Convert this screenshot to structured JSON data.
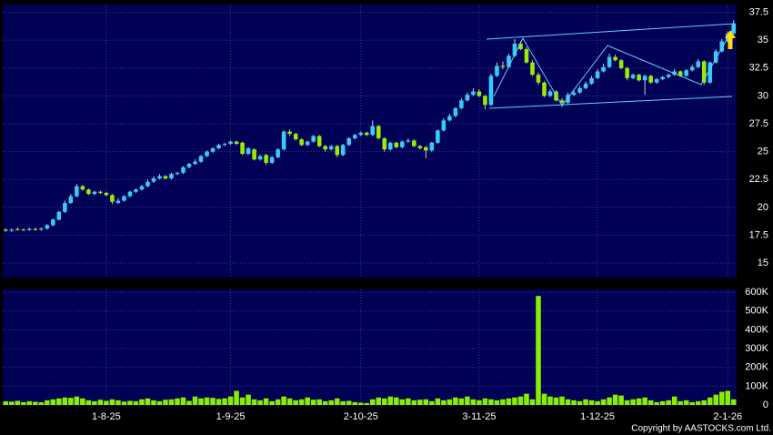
{
  "chart_data": {
    "type": "candlestick",
    "categories": [
      null,
      null,
      null,
      null,
      null,
      null,
      null,
      null,
      null,
      null,
      null,
      null,
      null,
      null,
      null,
      null,
      null,
      "1-8-25",
      null,
      null,
      null,
      null,
      null,
      null,
      null,
      null,
      null,
      null,
      null,
      null,
      null,
      null,
      null,
      null,
      null,
      null,
      null,
      null,
      "1-9-25",
      null,
      null,
      null,
      null,
      null,
      null,
      null,
      null,
      null,
      null,
      null,
      null,
      null,
      null,
      null,
      null,
      null,
      null,
      null,
      null,
      null,
      "2-10-25",
      null,
      null,
      null,
      null,
      null,
      null,
      null,
      null,
      null,
      null,
      null,
      null,
      null,
      null,
      null,
      null,
      null,
      null,
      null,
      "3-11-25",
      null,
      null,
      null,
      null,
      null,
      null,
      null,
      null,
      null,
      null,
      null,
      null,
      null,
      null,
      null,
      null,
      null,
      null,
      null,
      "1-12-25",
      null,
      null,
      null,
      null,
      null,
      null,
      null,
      null,
      null,
      null,
      null,
      null,
      null,
      null,
      null,
      null,
      null,
      null,
      null,
      null,
      null,
      "2-1-26",
      null
    ],
    "open": [
      18.0,
      17.9,
      18.05,
      18.0,
      17.95,
      18.05,
      18.0,
      18.1,
      18.4,
      18.9,
      19.6,
      20.4,
      21.0,
      21.9,
      21.6,
      21.2,
      21.4,
      21.3,
      21.1,
      20.4,
      20.6,
      21.0,
      21.4,
      21.6,
      21.9,
      22.3,
      22.6,
      22.8,
      22.6,
      23.0,
      23.1,
      23.6,
      23.9,
      24.1,
      24.6,
      25.0,
      25.3,
      25.6,
      25.7,
      25.9,
      25.8,
      24.8,
      25.2,
      24.3,
      24.7,
      24.0,
      24.5,
      25.2,
      26.8,
      26.6,
      26.1,
      25.6,
      25.9,
      26.4,
      25.5,
      25.2,
      25.5,
      24.7,
      25.6,
      26.2,
      26.5,
      26.7,
      26.5,
      27.3,
      26.2,
      25.2,
      25.8,
      25.4,
      25.9,
      26.0,
      25.5,
      25.4,
      25.1,
      25.8,
      26.9,
      27.8,
      28.2,
      28.9,
      29.6,
      30.1,
      30.4,
      30.0,
      29.2,
      31.8,
      32.7,
      32.6,
      33.6,
      34.7,
      34.2,
      33.0,
      31.9,
      31.2,
      30.0,
      30.4,
      29.6,
      29.4,
      30.1,
      30.3,
      30.7,
      31.1,
      31.6,
      32.2,
      32.6,
      33.5,
      33.2,
      32.5,
      31.6,
      31.9,
      31.4,
      31.8,
      31.2,
      31.5,
      31.7,
      31.9,
      32.2,
      31.8,
      32.3,
      32.6,
      33.1,
      31.2,
      33.0,
      34.0,
      34.9,
      35.6
    ],
    "high": [
      18.1,
      18.1,
      18.2,
      18.1,
      18.2,
      18.2,
      18.2,
      18.5,
      19.0,
      19.7,
      20.6,
      21.2,
      22.1,
      22.0,
      21.7,
      21.5,
      21.5,
      21.4,
      21.2,
      20.8,
      21.1,
      21.5,
      21.7,
      22.0,
      22.5,
      22.8,
      23.0,
      22.9,
      23.1,
      23.2,
      23.7,
      24.0,
      24.3,
      24.7,
      25.1,
      25.4,
      25.7,
      25.8,
      26.0,
      26.0,
      25.9,
      25.4,
      25.3,
      24.7,
      24.8,
      24.6,
      25.3,
      26.9,
      27.0,
      26.7,
      26.2,
      26.0,
      26.5,
      26.5,
      25.6,
      25.6,
      25.6,
      25.7,
      26.3,
      26.6,
      26.8,
      26.8,
      27.8,
      27.4,
      26.3,
      25.9,
      25.9,
      26.0,
      26.2,
      26.1,
      25.6,
      25.5,
      25.9,
      27.0,
      28.0,
      28.4,
      29.0,
      29.8,
      30.3,
      30.7,
      30.6,
      30.1,
      32.0,
      33.0,
      33.1,
      33.8,
      35.1,
      34.9,
      34.4,
      33.2,
      32.1,
      31.3,
      30.6,
      30.5,
      29.8,
      30.3,
      30.5,
      30.9,
      31.3,
      31.8,
      32.4,
      32.9,
      33.8,
      33.7,
      33.3,
      32.6,
      32.0,
      32.0,
      31.9,
      31.9,
      31.6,
      31.8,
      32.0,
      32.4,
      32.3,
      32.4,
      32.8,
      33.3,
      33.2,
      33.1,
      34.2,
      35.1,
      35.8,
      36.8
    ],
    "low": [
      17.8,
      17.8,
      17.9,
      17.9,
      17.9,
      17.9,
      17.9,
      18.0,
      18.3,
      18.8,
      19.5,
      20.3,
      20.9,
      21.5,
      21.1,
      21.1,
      21.2,
      21.0,
      20.3,
      20.3,
      20.5,
      20.9,
      21.3,
      21.5,
      21.8,
      22.2,
      22.5,
      22.5,
      22.5,
      22.9,
      23.0,
      23.5,
      23.8,
      24.0,
      24.5,
      24.9,
      25.2,
      25.5,
      25.6,
      25.6,
      24.7,
      24.7,
      24.2,
      24.2,
      23.8,
      23.9,
      24.4,
      25.1,
      26.4,
      26.0,
      25.5,
      25.5,
      25.8,
      25.4,
      25.0,
      25.1,
      24.5,
      24.6,
      25.5,
      26.1,
      26.4,
      26.4,
      26.4,
      26.1,
      25.0,
      25.1,
      25.3,
      25.3,
      25.8,
      25.4,
      25.2,
      24.4,
      25.0,
      25.7,
      26.8,
      27.7,
      28.1,
      28.8,
      29.5,
      30.0,
      29.9,
      28.8,
      29.1,
      31.7,
      32.4,
      32.5,
      33.5,
      34.1,
      32.9,
      31.8,
      31.0,
      29.9,
      29.9,
      29.5,
      29.0,
      29.3,
      30.0,
      30.2,
      30.6,
      31.0,
      31.5,
      32.1,
      32.5,
      33.1,
      32.4,
      31.4,
      31.5,
      31.3,
      30.1,
      31.1,
      31.1,
      31.4,
      31.6,
      31.8,
      31.7,
      31.7,
      32.2,
      32.5,
      31.0,
      31.1,
      32.9,
      33.9,
      34.8,
      35.5
    ],
    "close": [
      17.9,
      18.0,
      18.0,
      17.95,
      18.05,
      18.0,
      18.1,
      18.4,
      18.9,
      19.6,
      20.4,
      21.0,
      21.9,
      21.6,
      21.2,
      21.4,
      21.3,
      21.1,
      20.5,
      20.6,
      21.0,
      21.4,
      21.6,
      21.9,
      22.3,
      22.6,
      22.8,
      22.6,
      23.0,
      23.1,
      23.6,
      23.9,
      24.1,
      24.6,
      25.0,
      25.3,
      25.6,
      25.7,
      25.9,
      25.7,
      24.8,
      25.3,
      24.3,
      24.6,
      24.0,
      24.5,
      25.2,
      26.8,
      26.6,
      26.1,
      25.6,
      25.9,
      26.4,
      25.5,
      25.2,
      25.5,
      24.7,
      25.6,
      26.2,
      26.5,
      26.7,
      26.5,
      27.3,
      26.2,
      25.2,
      25.8,
      25.4,
      25.9,
      26.0,
      25.5,
      25.3,
      25.1,
      25.8,
      26.9,
      27.8,
      28.2,
      28.9,
      29.6,
      30.1,
      30.4,
      30.0,
      29.2,
      31.8,
      32.7,
      32.6,
      33.6,
      34.7,
      34.2,
      33.0,
      31.9,
      31.2,
      30.0,
      30.4,
      29.6,
      29.4,
      30.1,
      30.3,
      30.7,
      31.1,
      31.6,
      32.2,
      32.6,
      33.5,
      33.2,
      32.5,
      31.6,
      31.9,
      31.4,
      31.8,
      31.2,
      31.5,
      31.7,
      31.9,
      32.2,
      31.8,
      32.3,
      32.6,
      33.1,
      31.2,
      33.0,
      34.0,
      34.9,
      35.6,
      36.5
    ],
    "up_color": "#33ccff",
    "down_color": "#99ee00",
    "ylim": [
      13.7,
      38.2
    ],
    "yticks": [
      15,
      17.5,
      20,
      22.5,
      25,
      27.5,
      30,
      32.5,
      35,
      37.5
    ],
    "grid": true,
    "volume": {
      "color": "#88ee00",
      "values": [
        20000,
        18000,
        22000,
        15000,
        20000,
        17000,
        15000,
        25000,
        30000,
        35000,
        40000,
        38000,
        45000,
        35000,
        25000,
        20000,
        28000,
        22000,
        30000,
        25000,
        18000,
        22000,
        20000,
        30000,
        35000,
        25000,
        20000,
        28000,
        30000,
        35000,
        40000,
        22000,
        45000,
        35000,
        40000,
        38000,
        32000,
        35000,
        45000,
        75000,
        40000,
        55000,
        30000,
        25000,
        35000,
        20000,
        30000,
        45000,
        35000,
        25000,
        30000,
        40000,
        28000,
        30000,
        20000,
        25000,
        35000,
        20000,
        22000,
        15000,
        12000,
        10000,
        30000,
        40000,
        35000,
        45000,
        40000,
        30000,
        35000,
        25000,
        28000,
        30000,
        20000,
        35000,
        25000,
        30000,
        40000,
        35000,
        45000,
        30000,
        25000,
        35000,
        30000,
        25000,
        30000,
        35000,
        40000,
        45000,
        60000,
        30000,
        580000,
        60000,
        45000,
        40000,
        45000,
        30000,
        25000,
        20000,
        30000,
        25000,
        20000,
        30000,
        40000,
        55000,
        50000,
        25000,
        30000,
        35000,
        40000,
        25000,
        15000,
        20000,
        25000,
        45000,
        20000,
        25000,
        15000,
        20000,
        25000,
        40000,
        55000,
        70000,
        75000,
        30000
      ],
      "ylim": [
        0,
        615000
      ],
      "yticks": [
        0,
        {
          "value": 100000,
          "label": "100K"
        },
        {
          "value": 200000,
          "label": "200K"
        },
        {
          "value": 300000,
          "label": "300K"
        },
        {
          "value": 400000,
          "label": "400K"
        },
        {
          "value": 500000,
          "label": "500K"
        },
        {
          "value": 600000,
          "label": "600K"
        }
      ]
    },
    "copyright": "Copyright by AASTOCKS.com Ltd."
  }
}
